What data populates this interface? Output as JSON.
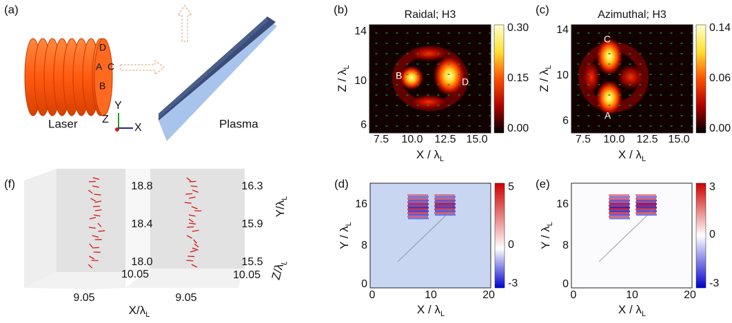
{
  "panels": {
    "a": {
      "label": "(a)",
      "laser": "Laser",
      "plasma": "Plasma",
      "points": [
        "D",
        "A",
        "C",
        "B"
      ],
      "axes": [
        "Z",
        "Y",
        "X"
      ]
    },
    "b": {
      "label": "(b)",
      "title": "Raidal; H3",
      "xticks": [
        "7.5",
        "10.0",
        "12.5",
        "15.0"
      ],
      "yticks": [
        "14",
        "10",
        "6"
      ],
      "xlabel": {
        "main": "X / λ",
        "sub": "L"
      },
      "ylabel": {
        "main": "Z / λ",
        "sub": "L"
      },
      "colorbar": [
        "0.30",
        "0.15",
        "0.00"
      ],
      "points": [
        "B",
        "D"
      ]
    },
    "c": {
      "label": "(c)",
      "title": "Azimuthal; H3",
      "xticks": [
        "7.5",
        "10.0",
        "12.5",
        "15.0"
      ],
      "yticks": [
        "14",
        "10",
        "6"
      ],
      "xlabel": {
        "main": "X / λ",
        "sub": "L"
      },
      "ylabel": {
        "main": "Z / λ",
        "sub": "L"
      },
      "colorbar": [
        "0.14",
        "0.06",
        "0.00"
      ],
      "points": [
        "C",
        "A"
      ]
    },
    "d": {
      "label": "(d)",
      "xticks": [
        "0",
        "10",
        "20"
      ],
      "yticks": [
        "16",
        "8",
        "0"
      ],
      "xlabel": {
        "main": "X / λ",
        "sub": "L"
      },
      "ylabel": {
        "main": "Y / λ",
        "sub": "L"
      },
      "colorbar": [
        "5",
        "0",
        "-3"
      ]
    },
    "e": {
      "label": "(e)",
      "xticks": [
        "0",
        "10",
        "20"
      ],
      "yticks": [
        "16",
        "8",
        "0"
      ],
      "xlabel": {
        "main": "X / λ",
        "sub": "L"
      },
      "ylabel": {
        "main": "Y / λ",
        "sub": "L"
      },
      "colorbar": [
        "3",
        "0",
        "-3"
      ]
    },
    "f": {
      "label": "(f)",
      "left_ticks": [
        "18.8",
        "18.4",
        "18.0",
        "10.05",
        "9.05"
      ],
      "right_ticks": [
        "16.3",
        "15.9",
        "15.5",
        "10.05",
        "9.05"
      ],
      "xlabel": {
        "main": "X/λ",
        "sub": "L"
      },
      "zlabel": {
        "main": "Z/λ",
        "sub": "L"
      },
      "ylabel": {
        "main": "Y/λ",
        "sub": "L"
      }
    }
  }
}
